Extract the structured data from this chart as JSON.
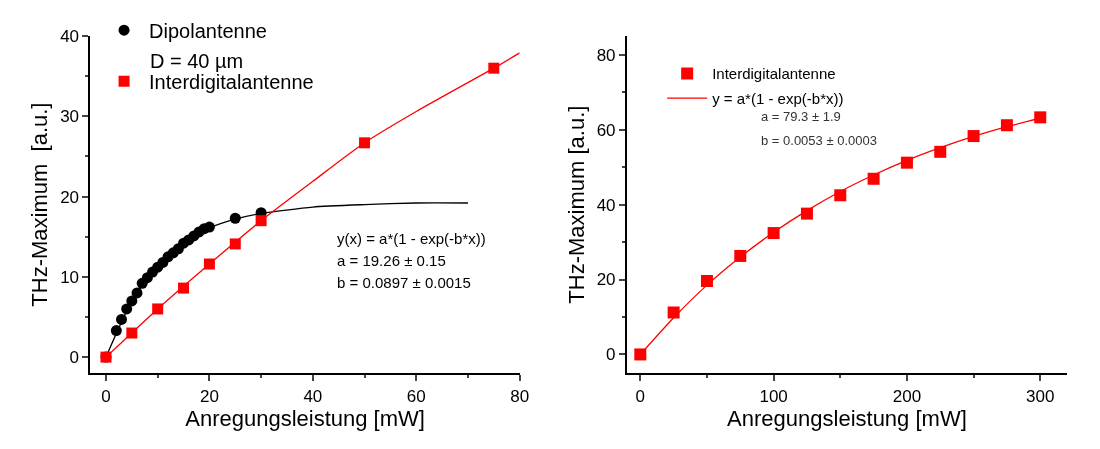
{
  "chart_data": [
    {
      "type": "scatter",
      "xlabel": "Anregungsleistung [mW]",
      "ylabel": "THz-Maximum  [a.u.]",
      "xlim": [
        -3,
        80
      ],
      "xticks": [
        0,
        20,
        40,
        60,
        80
      ],
      "ylim": [
        -2,
        40
      ],
      "yticks": [
        0,
        10,
        20,
        30,
        40
      ],
      "legend": "top left",
      "annotations": [
        "D = 40 µm",
        "y(x) = a*(1 - exp(-b*x))",
        "a = 19.26 ± 0.15",
        "b = 0.0897 ± 0.0015"
      ],
      "series": [
        {
          "name": "Dipolantenne",
          "marker": "circle",
          "color": "#000000",
          "x": [
            0,
            2,
            3,
            4,
            5,
            6,
            7,
            8,
            9,
            10,
            11,
            12,
            13,
            14,
            15,
            16,
            17,
            18,
            19,
            20,
            25,
            30
          ],
          "values": [
            0,
            3.3,
            4.7,
            6.0,
            7.0,
            8.0,
            9.2,
            9.9,
            10.6,
            11.2,
            11.8,
            12.5,
            13.0,
            13.5,
            14.2,
            14.6,
            15.1,
            15.6,
            16.0,
            16.2,
            17.3,
            18.0
          ]
        },
        {
          "type": "line",
          "color": "#000000",
          "x": [
            0,
            5,
            10,
            15,
            20,
            25,
            30,
            40,
            50,
            60,
            70
          ],
          "values": [
            0,
            7.0,
            11.4,
            14.2,
            16.1,
            17.2,
            17.9,
            18.7,
            19.0,
            19.2,
            19.2
          ]
        },
        {
          "name": "Interdigitalantenne",
          "marker": "square",
          "color": "#ff0000",
          "x": [
            0,
            5,
            10,
            15,
            20,
            25,
            30,
            50,
            75
          ],
          "values": [
            0,
            3.0,
            6.0,
            8.6,
            11.6,
            14.1,
            17.0,
            26.7,
            36.0
          ]
        },
        {
          "type": "line",
          "color": "#ff0000",
          "x": [
            0,
            10,
            20,
            30,
            40,
            50,
            60,
            75,
            80
          ],
          "values": [
            0,
            6.0,
            11.6,
            17.0,
            21.9,
            26.7,
            30.6,
            36.0,
            37.9
          ]
        }
      ]
    },
    {
      "type": "scatter",
      "xlabel": "Anregungsleistung [mW]",
      "ylabel": "THz-Maximum [a.u.]",
      "xlim": [
        -10,
        320
      ],
      "xticks": [
        0,
        100,
        200,
        300
      ],
      "ylim": [
        -5,
        85
      ],
      "yticks": [
        0,
        20,
        40,
        60,
        80
      ],
      "legend": "top left",
      "annotations": [
        "a = 79.3 ± 1.9",
        "b = 0.0053 ± 0.0003"
      ],
      "series": [
        {
          "name": "Interdigitalantenne",
          "marker": "square",
          "color": "#ff0000",
          "x": [
            0,
            25,
            50,
            75,
            100,
            125,
            150,
            175,
            200,
            225,
            250,
            275,
            300
          ],
          "values": [
            0,
            11.2,
            19.6,
            26.3,
            32.4,
            37.6,
            42.5,
            46.9,
            51.2,
            54.1,
            58.3,
            61.2,
            63.3
          ]
        },
        {
          "name": "y = a*(1 - exp(-b*x))",
          "type": "line",
          "color": "#ff0000",
          "x": [
            0,
            25,
            50,
            75,
            100,
            125,
            150,
            175,
            200,
            225,
            250,
            275,
            300
          ],
          "values": [
            0,
            9.8,
            18.5,
            26.0,
            32.6,
            38.4,
            43.5,
            47.9,
            51.8,
            55.2,
            58.2,
            60.8,
            63.1
          ]
        }
      ]
    }
  ]
}
